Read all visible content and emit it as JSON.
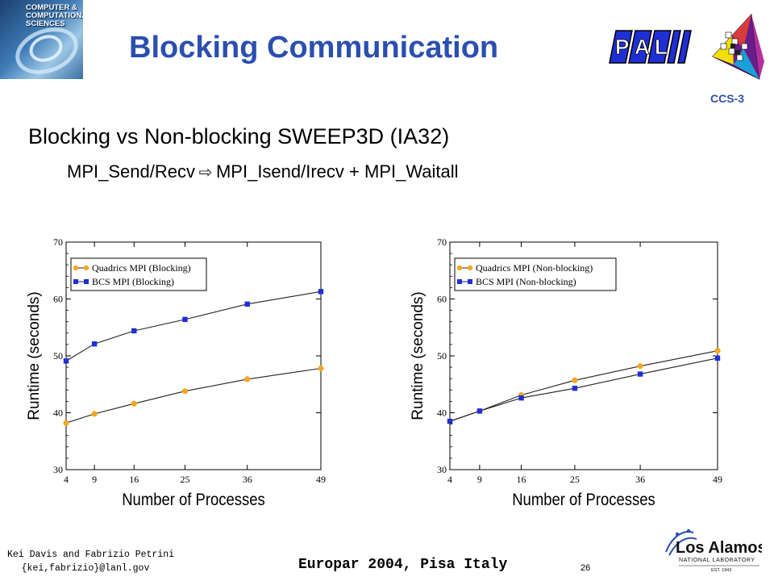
{
  "header": {
    "logo_text": [
      "COMPUTER &",
      "COMPUTATIONAL",
      "SCIENCES"
    ],
    "title": "Blocking Communication",
    "pal_logo_text": [
      "P",
      "A",
      "L"
    ],
    "ccs_label": "CCS-3"
  },
  "content": {
    "subtitle": "Blocking vs Non-blocking SWEEP3D (IA32)",
    "subline_left": "MPI_Send/Recv",
    "subline_arrow": "⇨",
    "subline_right": "MPI_Isend/Irecv  + MPI_Waitall"
  },
  "chart_data": [
    {
      "type": "line",
      "x": [
        4,
        9,
        16,
        25,
        36,
        49
      ],
      "xlabel": "Number of Processes",
      "ylabel": "Runtime (seconds)",
      "ylim": [
        30,
        70
      ],
      "yticks": [
        30,
        40,
        50,
        60,
        70
      ],
      "legend_position": "top-left",
      "grid": false,
      "series": [
        {
          "name": "Quadrics MPI (Blocking)",
          "color": "#f5a623",
          "marker": "circle",
          "values": [
            38.2,
            39.8,
            41.6,
            43.8,
            45.9,
            47.8
          ]
        },
        {
          "name": "BCS MPI (Blocking)",
          "color": "#1f2fd6",
          "marker": "square",
          "values": [
            49.1,
            52.1,
            54.4,
            56.4,
            59.1,
            61.3
          ]
        }
      ]
    },
    {
      "type": "line",
      "x": [
        4,
        9,
        16,
        25,
        36,
        49
      ],
      "xlabel": "Number of Processes",
      "ylabel": "Runtime (seconds)",
      "ylim": [
        30,
        70
      ],
      "yticks": [
        30,
        40,
        50,
        60,
        70
      ],
      "legend_position": "top-left",
      "grid": false,
      "series": [
        {
          "name": "Quadrics MPI (Non-blocking)",
          "color": "#f5a623",
          "marker": "circle",
          "values": [
            38.5,
            40.3,
            43.1,
            45.7,
            48.2,
            50.9
          ]
        },
        {
          "name": "BCS MPI (Non-blocking)",
          "color": "#1f2fd6",
          "marker": "square",
          "values": [
            38.5,
            40.3,
            42.6,
            44.3,
            46.8,
            49.6
          ]
        }
      ]
    }
  ],
  "footer": {
    "authors_line1": "Kei Davis and Fabrizio Petrini",
    "authors_line2": "{kei,fabrizio}@lanl.gov",
    "conference": "Europar 2004, Pisa Italy",
    "page_number": "26",
    "lanl_name": "Los Alamos",
    "lanl_sub": "NATIONAL LABORATORY",
    "lanl_est": "EST. 1943"
  }
}
